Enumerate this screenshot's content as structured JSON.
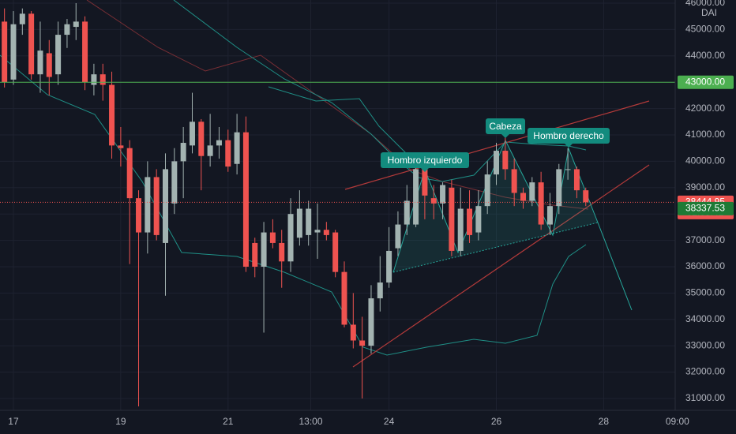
{
  "chart_data": {
    "type": "candlestick",
    "x": [
      -4,
      0,
      4,
      8,
      12,
      16,
      20,
      24,
      28,
      32,
      36,
      40,
      44,
      48,
      52,
      56,
      60,
      64,
      68,
      72,
      76,
      80,
      84,
      88,
      92,
      96,
      100,
      104,
      108,
      112,
      116,
      120,
      124,
      128,
      132,
      136,
      140,
      144,
      148,
      152,
      156,
      160,
      164,
      168,
      172,
      176,
      180,
      184,
      188,
      192,
      196,
      200,
      204,
      208,
      212,
      216,
      220,
      224,
      228,
      232,
      236,
      240,
      244,
      248,
      252,
      256
    ],
    "open": [
      45300,
      43100,
      45200,
      45600,
      43300,
      44100,
      43300,
      44800,
      45100,
      45300,
      42900,
      43300,
      42900,
      40600,
      40500,
      38600,
      37300,
      39400,
      36900,
      38400,
      40000,
      40600,
      41500,
      40200,
      40600,
      40800,
      39900,
      41100,
      36900,
      36000,
      37300,
      36900,
      36200,
      37100,
      37200,
      37300,
      37400,
      37300,
      35800,
      33800,
      33200,
      33000,
      34800,
      35400,
      36700,
      37600,
      37600,
      39700,
      38600,
      38400,
      39000,
      36600,
      38200,
      37300,
      38300,
      39500,
      40400,
      39700,
      38800,
      38500,
      39200,
      37600,
      38300,
      39700,
      39700,
      38900
    ],
    "high": [
      45800,
      45700,
      45800,
      45700,
      45300,
      44600,
      45300,
      45400,
      46000,
      45500,
      43700,
      43700,
      43400,
      41300,
      40800,
      38900,
      40000,
      39700,
      40300,
      40500,
      41300,
      42600,
      41600,
      41800,
      41300,
      41200,
      41800,
      41700,
      37100,
      37700,
      37800,
      37400,
      38600,
      38900,
      38500,
      38400,
      37700,
      37400,
      36200,
      35000,
      34100,
      35300,
      36400,
      37500,
      38100,
      39100,
      39800,
      39900,
      39100,
      39200,
      39300,
      39000,
      38900,
      38900,
      40000,
      40700,
      40900,
      40100,
      39000,
      39400,
      39600,
      38800,
      39900,
      40500,
      39800,
      39000
    ],
    "low": [
      42800,
      42900,
      44800,
      43100,
      42600,
      42500,
      42900,
      44300,
      44600,
      42700,
      42500,
      42300,
      40100,
      39800,
      36100,
      30700,
      36500,
      37000,
      34900,
      38000,
      38600,
      40300,
      38900,
      39800,
      40100,
      39600,
      39500,
      35800,
      35600,
      33500,
      36700,
      35200,
      35800,
      36800,
      36800,
      36300,
      37000,
      35600,
      33700,
      32900,
      31000,
      32700,
      34300,
      35200,
      36400,
      37200,
      37500,
      37800,
      37800,
      37800,
      36400,
      36400,
      36900,
      37000,
      38000,
      39100,
      39300,
      38300,
      38200,
      38300,
      37400,
      37200,
      38000,
      39300,
      38600,
      38300
    ],
    "close": [
      43000,
      45200,
      45600,
      43300,
      44200,
      43200,
      44800,
      45200,
      45300,
      43000,
      43300,
      42900,
      40600,
      40500,
      38600,
      37300,
      39400,
      37200,
      39700,
      40000,
      40700,
      41500,
      40200,
      40600,
      40800,
      39800,
      41100,
      36000,
      36000,
      37300,
      36900,
      36200,
      38000,
      38200,
      38200,
      37400,
      37200,
      35800,
      33800,
      33200,
      33000,
      34800,
      35400,
      36600,
      37600,
      38500,
      39700,
      38700,
      38400,
      39100,
      36600,
      38200,
      37200,
      38300,
      39500,
      40400,
      39700,
      38800,
      38500,
      39200,
      37600,
      38300,
      39700,
      39700,
      38900,
      38445
    ],
    "up_color": "#a3b3b1",
    "down_color": "#ef5350",
    "xlim": [
      -6,
      296
    ],
    "xticks": [
      {
        "value": 0,
        "label": "17"
      },
      {
        "value": 48,
        "label": "19"
      },
      {
        "value": 96,
        "label": "21"
      },
      {
        "value": 133,
        "label": "13:00"
      },
      {
        "value": 168,
        "label": "24"
      },
      {
        "value": 216,
        "label": "26"
      },
      {
        "value": 264,
        "label": "28"
      },
      {
        "value": 297,
        "label": "09:00"
      }
    ],
    "ylim": [
      30550,
      46120
    ],
    "yticks": [
      {
        "value": 31000,
        "label": "31000.00"
      },
      {
        "value": 32000,
        "label": "32000.00"
      },
      {
        "value": 33000,
        "label": "33000.00"
      },
      {
        "value": 34000,
        "label": "34000.00"
      },
      {
        "value": 35000,
        "label": "35000.00"
      },
      {
        "value": 36000,
        "label": "36000.00"
      },
      {
        "value": 37000,
        "label": "37000.00"
      },
      {
        "value": 38000,
        "label": "38000.00"
      },
      {
        "value": 39000,
        "label": "39000.00"
      },
      {
        "value": 40000,
        "label": "40000.00"
      },
      {
        "value": 41000,
        "label": "41000.00"
      },
      {
        "value": 42000,
        "label": "42000.00"
      },
      {
        "value": 43000,
        "label": "43000.00"
      },
      {
        "value": 44000,
        "label": "44000.00"
      },
      {
        "value": 45000,
        "label": "45000.00"
      },
      {
        "value": 46000,
        "label": "46000.00"
      }
    ],
    "grid": true,
    "currency": "DAI",
    "price_lines": [
      {
        "value": 43000,
        "label": "43000.00",
        "color": "#4caf50"
      },
      {
        "value": 38444.95,
        "label": "38444.95",
        "countdown": "02:59:41",
        "color": "#ef5350"
      },
      {
        "value": 38337.53,
        "label": "38337.53",
        "color": "#1e7a35"
      }
    ],
    "annotations": [
      "Hombro izquierdo",
      "Cabeza",
      "Hombro derecho"
    ]
  }
}
